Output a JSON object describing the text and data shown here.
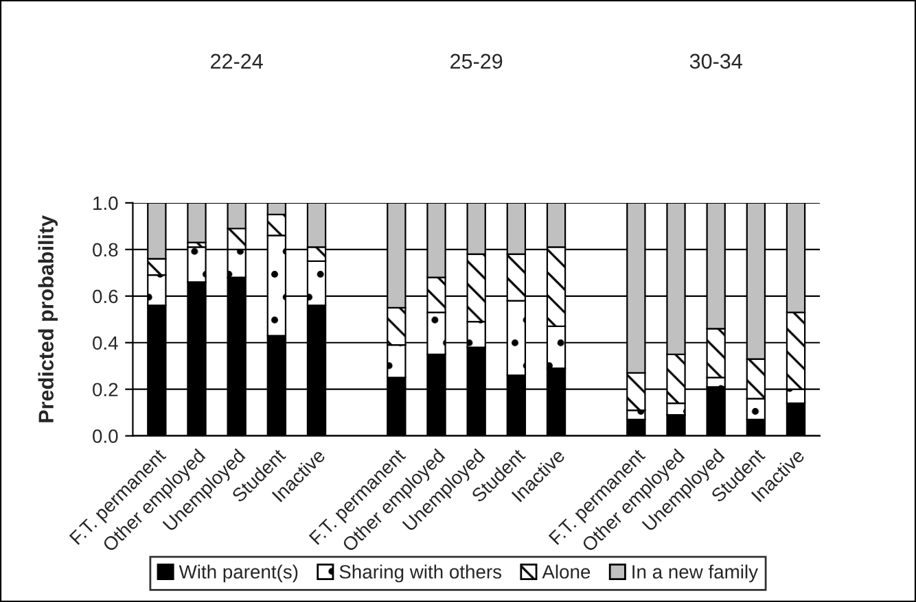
{
  "chart_data": {
    "type": "bar",
    "stacked": true,
    "ylabel": "Predicted probability",
    "annotations": [
      "22-24",
      "25-29",
      "30-34"
    ],
    "categories": [
      "F.T. permanent",
      "Other employed",
      "Unemployed",
      "Student",
      "Inactive",
      null,
      "F.T. permanent",
      "Other employed",
      "Unemployed",
      "Student",
      "Inactive",
      null,
      "F.T. permanent",
      "Other employed",
      "Unemployed",
      "Student",
      "Inactive"
    ],
    "series": [
      {
        "name": "With parent(s)",
        "color": "#000000",
        "values": [
          0.56,
          0.66,
          0.68,
          0.43,
          0.56,
          null,
          0.25,
          0.35,
          0.38,
          0.26,
          0.29,
          null,
          0.07,
          0.09,
          0.21,
          0.07,
          0.14
        ]
      },
      {
        "name": "Sharing with others",
        "color": "#ffffff",
        "values": [
          0.13,
          0.15,
          0.12,
          0.43,
          0.19,
          null,
          0.14,
          0.18,
          0.11,
          0.32,
          0.18,
          null,
          0.04,
          0.05,
          0.04,
          0.09,
          0.06
        ]
      },
      {
        "name": "Alone",
        "color": "#ffffff",
        "values": [
          0.07,
          0.02,
          0.09,
          0.09,
          0.06,
          null,
          0.16,
          0.15,
          0.29,
          0.2,
          0.34,
          null,
          0.16,
          0.21,
          0.21,
          0.17,
          0.33
        ]
      },
      {
        "name": "In a new family",
        "color": "#c0c0c0",
        "values": [
          0.24,
          0.17,
          0.11,
          0.05,
          0.19,
          null,
          0.45,
          0.32,
          0.22,
          0.22,
          0.19,
          null,
          0.73,
          0.65,
          0.54,
          0.67,
          0.47
        ]
      }
    ],
    "ylim": [
      0,
      1
    ],
    "yticks": [
      {
        "value": 0,
        "label": "0.0"
      },
      {
        "value": 0.2,
        "label": "0.2"
      },
      {
        "value": 0.4,
        "label": "0.4"
      },
      {
        "value": 0.6,
        "label": "0.6"
      },
      {
        "value": 0.8,
        "label": "0.8"
      },
      {
        "value": 1,
        "label": "1.0"
      }
    ],
    "grid": "y",
    "legend": "bottom"
  }
}
